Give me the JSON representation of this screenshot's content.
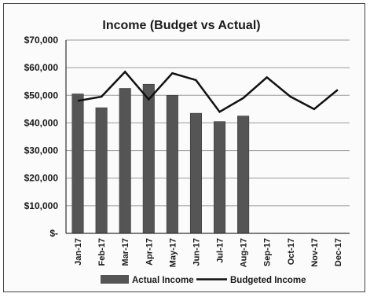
{
  "chart_data": {
    "type": "bar+line",
    "title": "Income (Budget vs Actual)",
    "xlabel": "",
    "ylabel": "",
    "categories": [
      "Jan-17",
      "Feb-17",
      "Mar-17",
      "Apr-17",
      "May-17",
      "Jun-17",
      "Jul-17",
      "Aug-17",
      "Sep-17",
      "Oct-17",
      "Nov-17",
      "Dec-17"
    ],
    "ylim": [
      0,
      70000
    ],
    "yticks": [
      0,
      10000,
      20000,
      30000,
      40000,
      50000,
      60000,
      70000
    ],
    "ytick_labels": [
      "$-",
      "$10,000",
      "$20,000",
      "$30,000",
      "$40,000",
      "$50,000",
      "$60,000",
      "$70,000"
    ],
    "grid": true,
    "legend_position": "bottom",
    "series": [
      {
        "name": "Actual Income",
        "type": "bar",
        "color": "#555555",
        "values": [
          50500,
          45500,
          52500,
          54000,
          50000,
          43500,
          40500,
          42500,
          null,
          null,
          null,
          null
        ]
      },
      {
        "name": "Budgeted Income",
        "type": "line",
        "color": "#111111",
        "values": [
          48000,
          49500,
          58500,
          48500,
          58000,
          55500,
          44000,
          49000,
          56500,
          49500,
          45000,
          52000
        ]
      }
    ]
  }
}
